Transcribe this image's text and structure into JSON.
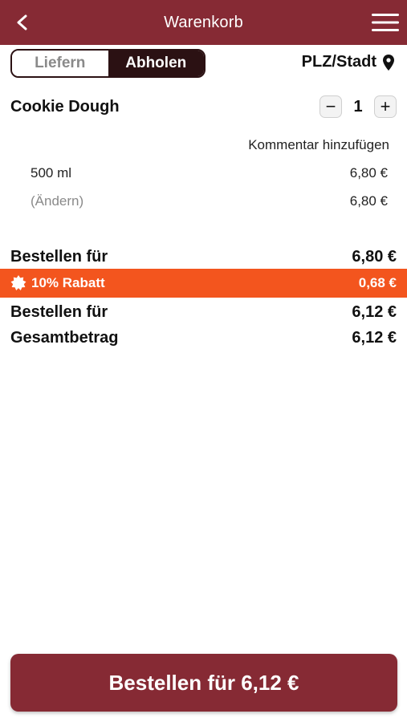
{
  "header": {
    "title": "Warenkorb",
    "back_icon": "chevron-left-icon",
    "menu_icon": "hamburger-menu-icon"
  },
  "delivery_toggle": {
    "options": [
      "Liefern",
      "Abholen"
    ],
    "selected": "Abholen"
  },
  "location": {
    "label": "PLZ/Stadt",
    "icon": "location-pin-icon"
  },
  "cart": {
    "items": [
      {
        "name": "Cookie Dough",
        "quantity": "1",
        "minus_label": "−",
        "plus_label": "+",
        "comment_link": "Kommentar hinzufügen",
        "options": [
          {
            "label": "500 ml",
            "price": "6,80 €"
          },
          {
            "label": "(Ändern)",
            "price": "6,80 €"
          }
        ]
      }
    ]
  },
  "summary": {
    "subtotal_label": "Bestellen für",
    "subtotal_value": "6,80 €",
    "discount_label": "10% Rabatt",
    "discount_value": "0,68 €",
    "discount_icon": "badge-icon",
    "discounted_label": "Bestellen für",
    "discounted_value": "6,12 €",
    "total_label": "Gesamtbetrag",
    "total_value": "6,12 €"
  },
  "order_button": {
    "label": "Bestellen für 6,12 €"
  },
  "colors": {
    "brand": "#862a34",
    "toggle_active": "#2b1113",
    "discount": "#f3551e"
  }
}
